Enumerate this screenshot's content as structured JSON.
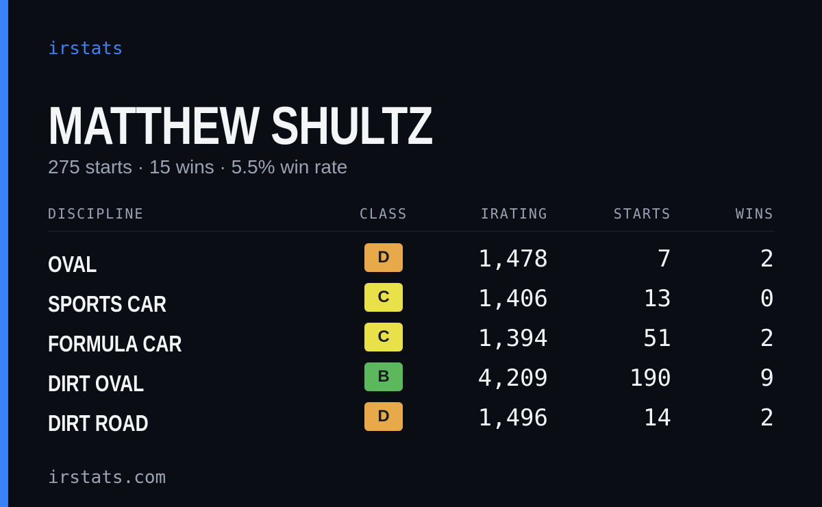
{
  "header": {
    "brand": "irstats",
    "name": "MATTHEW SHULTZ",
    "summary": "275 starts · 15 wins · 5.5% win rate"
  },
  "table": {
    "columns": [
      "DISCIPLINE",
      "CLASS",
      "IRATING",
      "STARTS",
      "WINS"
    ],
    "rows": [
      {
        "discipline": "OVAL",
        "class": "D",
        "irating": "1,478",
        "starts": "7",
        "wins": "2"
      },
      {
        "discipline": "SPORTS CAR",
        "class": "C",
        "irating": "1,406",
        "starts": "13",
        "wins": "0"
      },
      {
        "discipline": "FORMULA CAR",
        "class": "C",
        "irating": "1,394",
        "starts": "51",
        "wins": "2"
      },
      {
        "discipline": "DIRT OVAL",
        "class": "B",
        "irating": "4,209",
        "starts": "190",
        "wins": "9"
      },
      {
        "discipline": "DIRT ROAD",
        "class": "D",
        "irating": "1,496",
        "starts": "14",
        "wins": "2"
      }
    ],
    "class_colors": {
      "B": "#5cb85c",
      "C": "#e9e14a",
      "D": "#e8a94b"
    }
  },
  "footer": {
    "url": "irstats.com"
  }
}
